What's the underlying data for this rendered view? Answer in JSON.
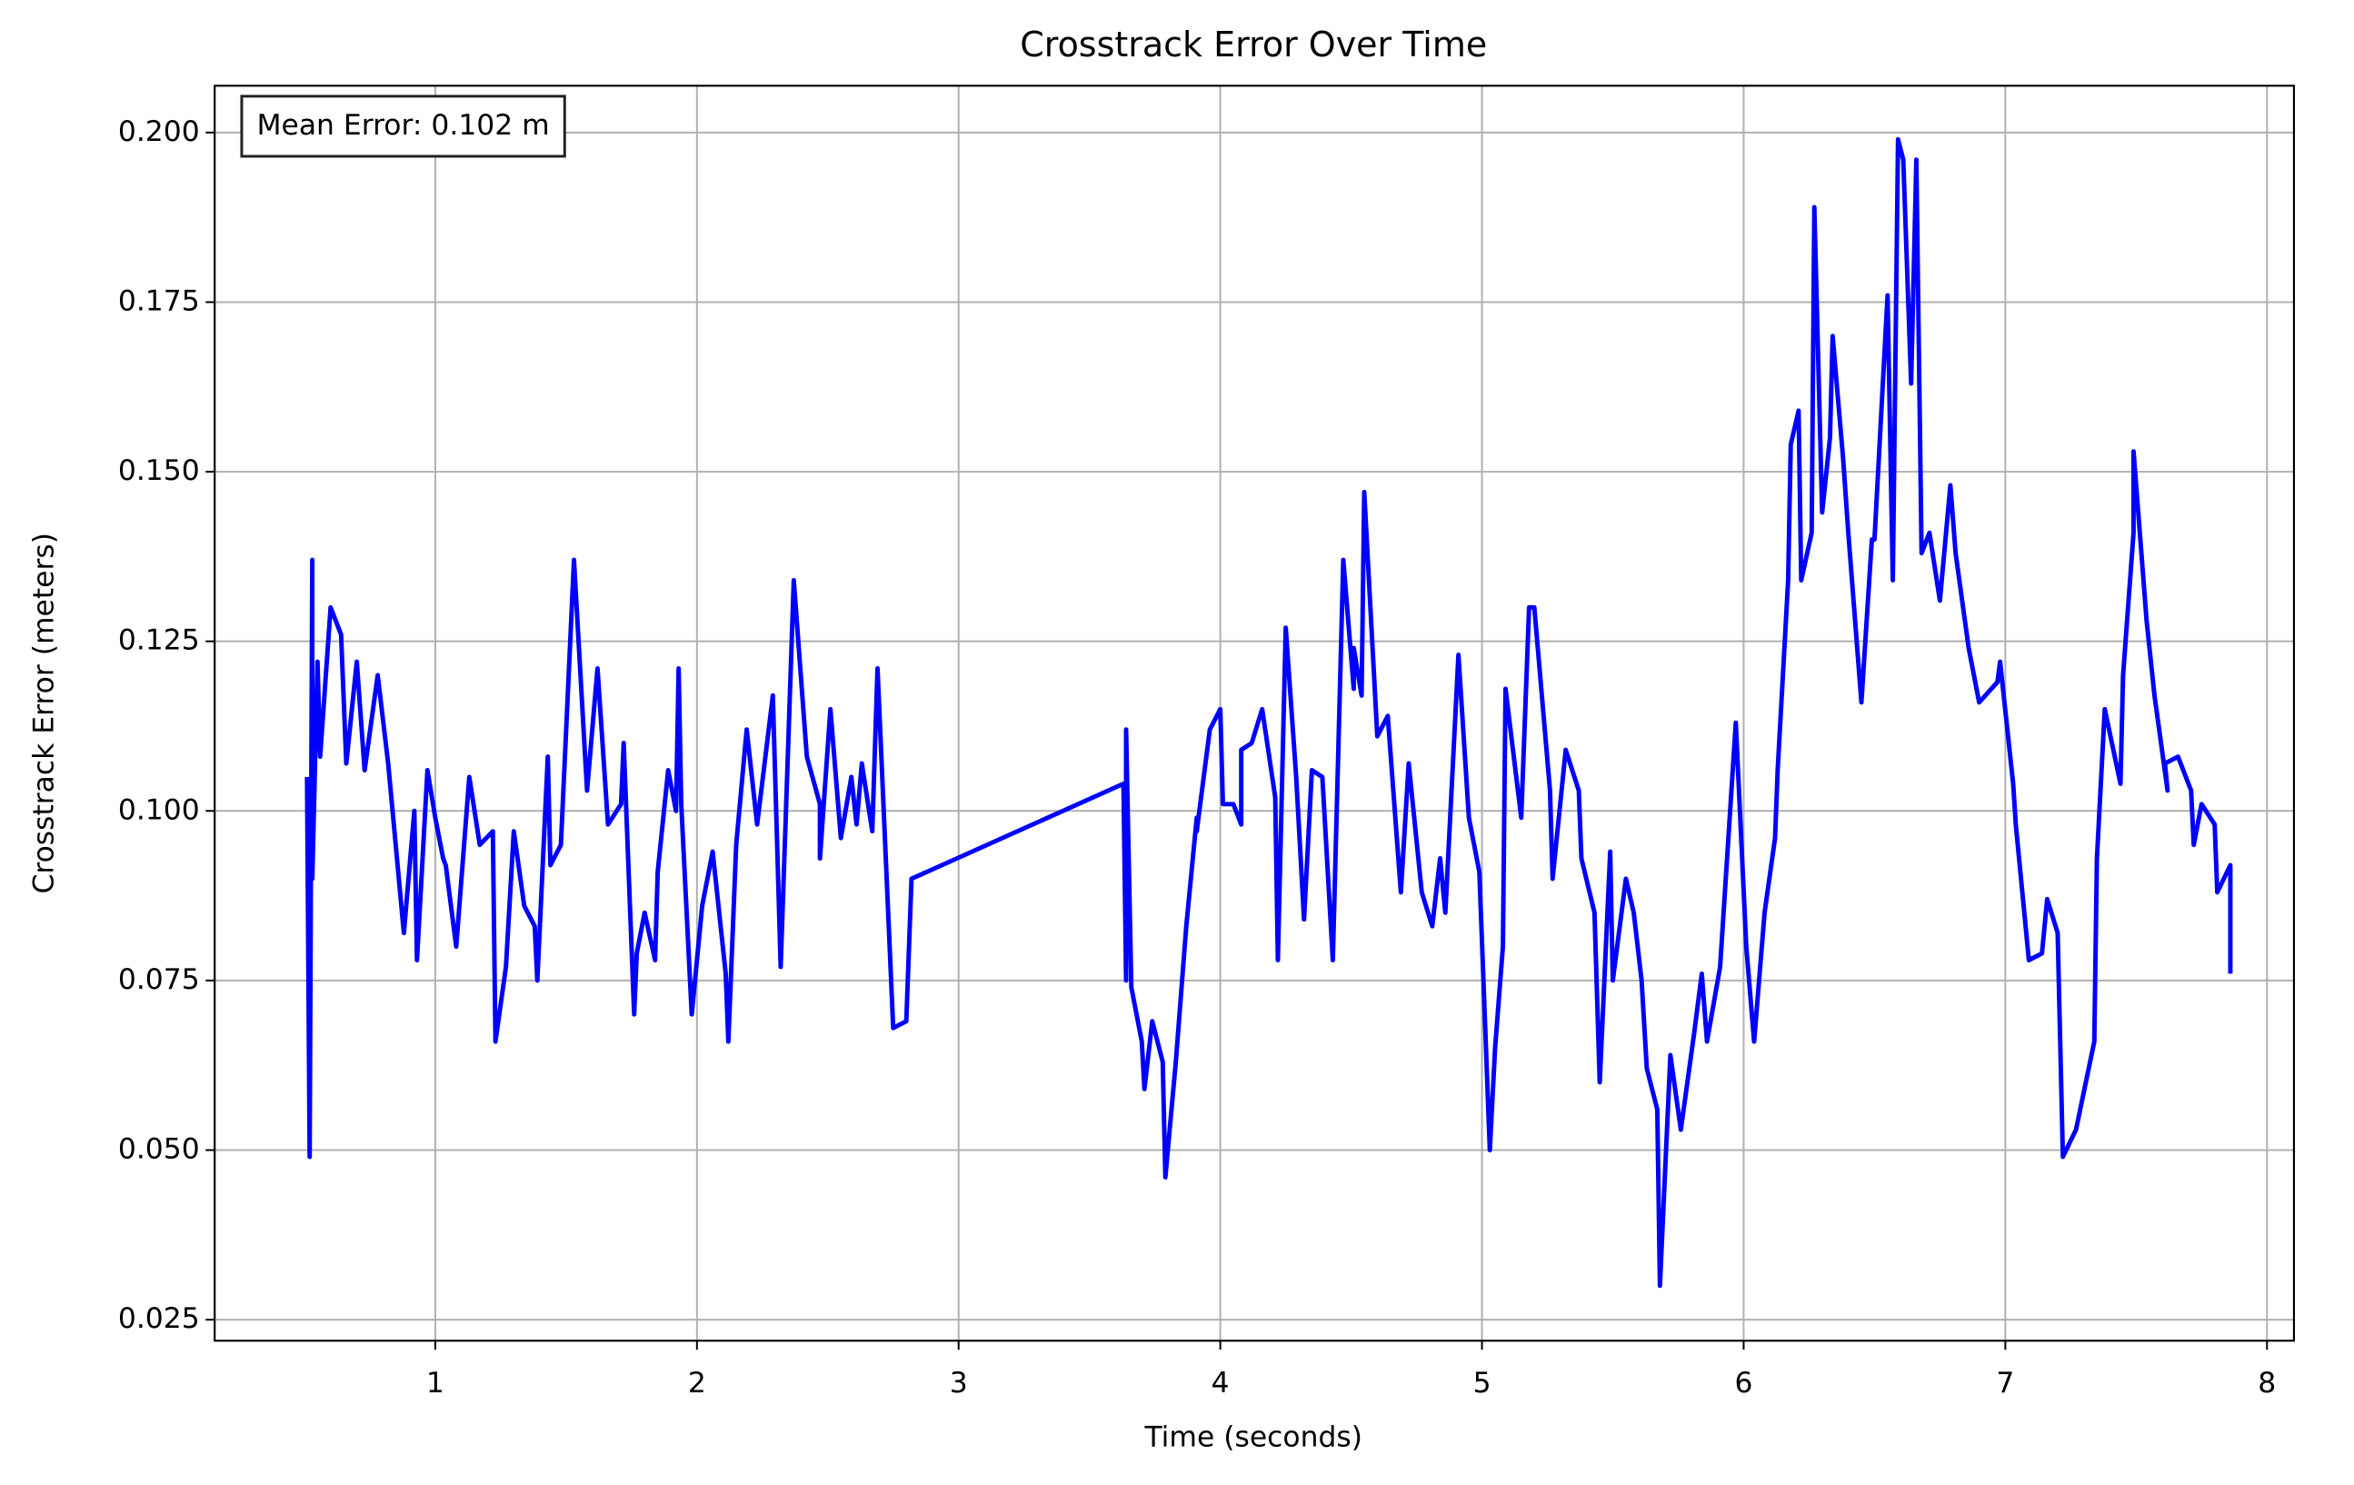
{
  "chart_data": {
    "type": "line",
    "title": "Crosstrack Error Over Time",
    "xlabel": "Time (seconds)",
    "ylabel": "Crosstrack Error (meters)",
    "annotation": "Mean Error: 0.102 m",
    "color": "#0000ff",
    "grid": true,
    "xlim": [
      0.157,
      8.103
    ],
    "ylim": [
      0.0219,
      0.2069
    ],
    "xticks": [
      1,
      2,
      3,
      4,
      5,
      6,
      7,
      8
    ],
    "yticks": [
      {
        "value": 0.025,
        "label": "0.025"
      },
      {
        "value": 0.05,
        "label": "0.050"
      },
      {
        "value": 0.075,
        "label": "0.075"
      },
      {
        "value": 0.1,
        "label": "0.100"
      },
      {
        "value": 0.125,
        "label": "0.125"
      },
      {
        "value": 0.15,
        "label": "0.150"
      },
      {
        "value": 0.175,
        "label": "0.175"
      },
      {
        "value": 0.2,
        "label": "0.200"
      }
    ],
    "x": [
      0.51,
      0.52,
      0.53,
      0.53,
      0.55,
      0.56,
      0.6,
      0.64,
      0.66,
      0.7,
      0.73,
      0.78,
      0.82,
      0.88,
      0.92,
      0.93,
      0.97,
      1.0,
      1.03,
      1.04,
      1.08,
      1.13,
      1.17,
      1.22,
      1.23,
      1.27,
      1.3,
      1.34,
      1.38,
      1.39,
      1.43,
      1.44,
      1.48,
      1.53,
      1.58,
      1.62,
      1.66,
      1.71,
      1.72,
      1.76,
      1.77,
      1.8,
      1.84,
      1.85,
      1.89,
      1.92,
      1.93,
      1.94,
      1.98,
      2.02,
      2.06,
      2.11,
      2.12,
      2.15,
      2.19,
      2.23,
      2.29,
      2.32,
      2.37,
      2.42,
      2.47,
      2.47,
      2.51,
      2.55,
      2.59,
      2.61,
      2.63,
      2.67,
      2.69,
      2.75,
      2.8,
      2.82,
      3.63,
      3.64,
      3.64,
      3.66,
      3.7,
      3.71,
      3.74,
      3.78,
      3.79,
      3.83,
      3.87,
      3.91,
      3.91,
      3.96,
      4.0,
      4.01,
      4.05,
      4.08,
      4.08,
      4.12,
      4.16,
      4.21,
      4.22,
      4.25,
      4.29,
      4.32,
      4.35,
      4.39,
      4.43,
      4.47,
      4.51,
      4.51,
      4.54,
      4.55,
      4.6,
      4.64,
      4.69,
      4.72,
      4.77,
      4.81,
      4.84,
      4.86,
      4.91,
      4.95,
      4.99,
      5.03,
      5.05,
      5.08,
      5.09,
      5.15,
      5.18,
      5.2,
      5.26,
      5.27,
      5.32,
      5.37,
      5.38,
      5.43,
      5.45,
      5.49,
      5.5,
      5.55,
      5.58,
      5.61,
      5.63,
      5.67,
      5.68,
      5.72,
      5.76,
      5.81,
      5.84,
      5.86,
      5.91,
      5.97,
      6.01,
      6.04,
      6.08,
      6.12,
      6.13,
      6.17,
      6.18,
      6.21,
      6.22,
      6.26,
      6.27,
      6.3,
      6.33,
      6.34,
      6.38,
      6.4,
      6.45,
      6.49,
      6.5,
      6.55,
      6.57,
      6.59,
      6.61,
      6.64,
      6.66,
      6.68,
      6.71,
      6.75,
      6.79,
      6.81,
      6.86,
      6.9,
      6.97,
      6.98,
      7.03,
      7.04,
      7.09,
      7.14,
      7.16,
      7.2,
      7.22,
      7.27,
      7.34,
      7.35,
      7.38,
      7.44,
      7.45,
      7.49,
      7.49,
      7.54,
      7.57,
      7.62,
      7.61,
      7.66,
      7.71,
      7.72,
      7.75,
      7.8,
      7.81,
      7.86,
      7.86
    ],
    "values": [
      0.105,
      0.049,
      0.137,
      0.09,
      0.122,
      0.108,
      0.13,
      0.126,
      0.107,
      0.122,
      0.106,
      0.12,
      0.107,
      0.082,
      0.1,
      0.078,
      0.106,
      0.099,
      0.093,
      0.092,
      0.08,
      0.105,
      0.095,
      0.097,
      0.066,
      0.077,
      0.097,
      0.086,
      0.083,
      0.075,
      0.108,
      0.092,
      0.095,
      0.137,
      0.103,
      0.121,
      0.098,
      0.101,
      0.11,
      0.07,
      0.079,
      0.085,
      0.078,
      0.091,
      0.106,
      0.1,
      0.121,
      0.101,
      0.07,
      0.086,
      0.094,
      0.076,
      0.066,
      0.095,
      0.112,
      0.098,
      0.117,
      0.077,
      0.134,
      0.108,
      0.101,
      0.093,
      0.115,
      0.096,
      0.105,
      0.098,
      0.107,
      0.097,
      0.121,
      0.068,
      0.069,
      0.09,
      0.104,
      0.075,
      0.112,
      0.074,
      0.066,
      0.059,
      0.069,
      0.063,
      0.046,
      0.063,
      0.083,
      0.099,
      0.097,
      0.112,
      0.115,
      0.101,
      0.101,
      0.098,
      0.109,
      0.11,
      0.115,
      0.102,
      0.078,
      0.127,
      0.105,
      0.084,
      0.106,
      0.105,
      0.078,
      0.137,
      0.118,
      0.124,
      0.117,
      0.147,
      0.111,
      0.114,
      0.088,
      0.107,
      0.088,
      0.083,
      0.093,
      0.085,
      0.123,
      0.099,
      0.091,
      0.05,
      0.065,
      0.08,
      0.118,
      0.099,
      0.13,
      0.13,
      0.103,
      0.09,
      0.109,
      0.103,
      0.093,
      0.085,
      0.06,
      0.094,
      0.075,
      0.09,
      0.085,
      0.075,
      0.062,
      0.056,
      0.03,
      0.064,
      0.053,
      0.067,
      0.076,
      0.066,
      0.077,
      0.113,
      0.08,
      0.066,
      0.085,
      0.096,
      0.106,
      0.134,
      0.154,
      0.159,
      0.134,
      0.141,
      0.189,
      0.144,
      0.155,
      0.17,
      0.152,
      0.141,
      0.116,
      0.14,
      0.14,
      0.176,
      0.134,
      0.199,
      0.196,
      0.163,
      0.196,
      0.138,
      0.141,
      0.131,
      0.148,
      0.138,
      0.124,
      0.116,
      0.119,
      0.122,
      0.104,
      0.098,
      0.078,
      0.079,
      0.087,
      0.082,
      0.049,
      0.053,
      0.066,
      0.093,
      0.115,
      0.104,
      0.12,
      0.141,
      0.153,
      0.128,
      0.117,
      0.103,
      0.107,
      0.108,
      0.103,
      0.095,
      0.101,
      0.098,
      0.088,
      0.092,
      0.076
    ]
  }
}
